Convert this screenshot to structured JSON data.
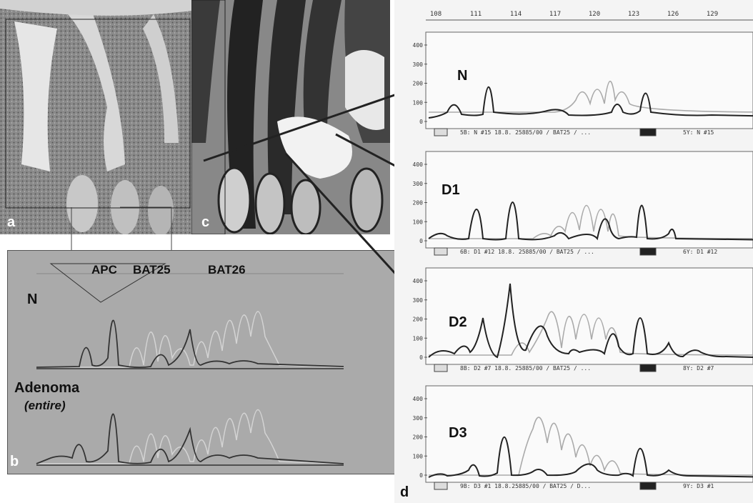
{
  "panels": {
    "a": "a",
    "b": "b",
    "c": "c",
    "d": "d"
  },
  "panel_b": {
    "markers": [
      "APC",
      "BAT25",
      "BAT26"
    ],
    "samples": {
      "normal": "N",
      "adenoma": "Adenoma",
      "adenoma_note": "(entire)"
    }
  },
  "panel_d": {
    "x_ticks": [
      "108",
      "111",
      "114",
      "117",
      "120",
      "123",
      "126",
      "129"
    ],
    "y_ticks": [
      "400",
      "300",
      "200",
      "100",
      "0"
    ],
    "traces": [
      {
        "label": "N",
        "footer_left": "5B: N #15 18.8. 25885/00 / BAT25 / ...",
        "footer_right": "5Y: N #15"
      },
      {
        "label": "D1",
        "footer_left": "6B: D1 #12 18.8. 25885/00 / BAT25 / ...",
        "footer_right": "6Y: D1 #12"
      },
      {
        "label": "D2",
        "footer_left": "8B: D2 #7 18.8. 25885/00 / BAT25 / ...",
        "footer_right": "8Y: D2 #7"
      },
      {
        "label": "D3",
        "footer_left": "9B: D3 #1 18.8.25885/00 / BAT25 / D...",
        "footer_right": "9Y: D3 #1"
      }
    ]
  }
}
